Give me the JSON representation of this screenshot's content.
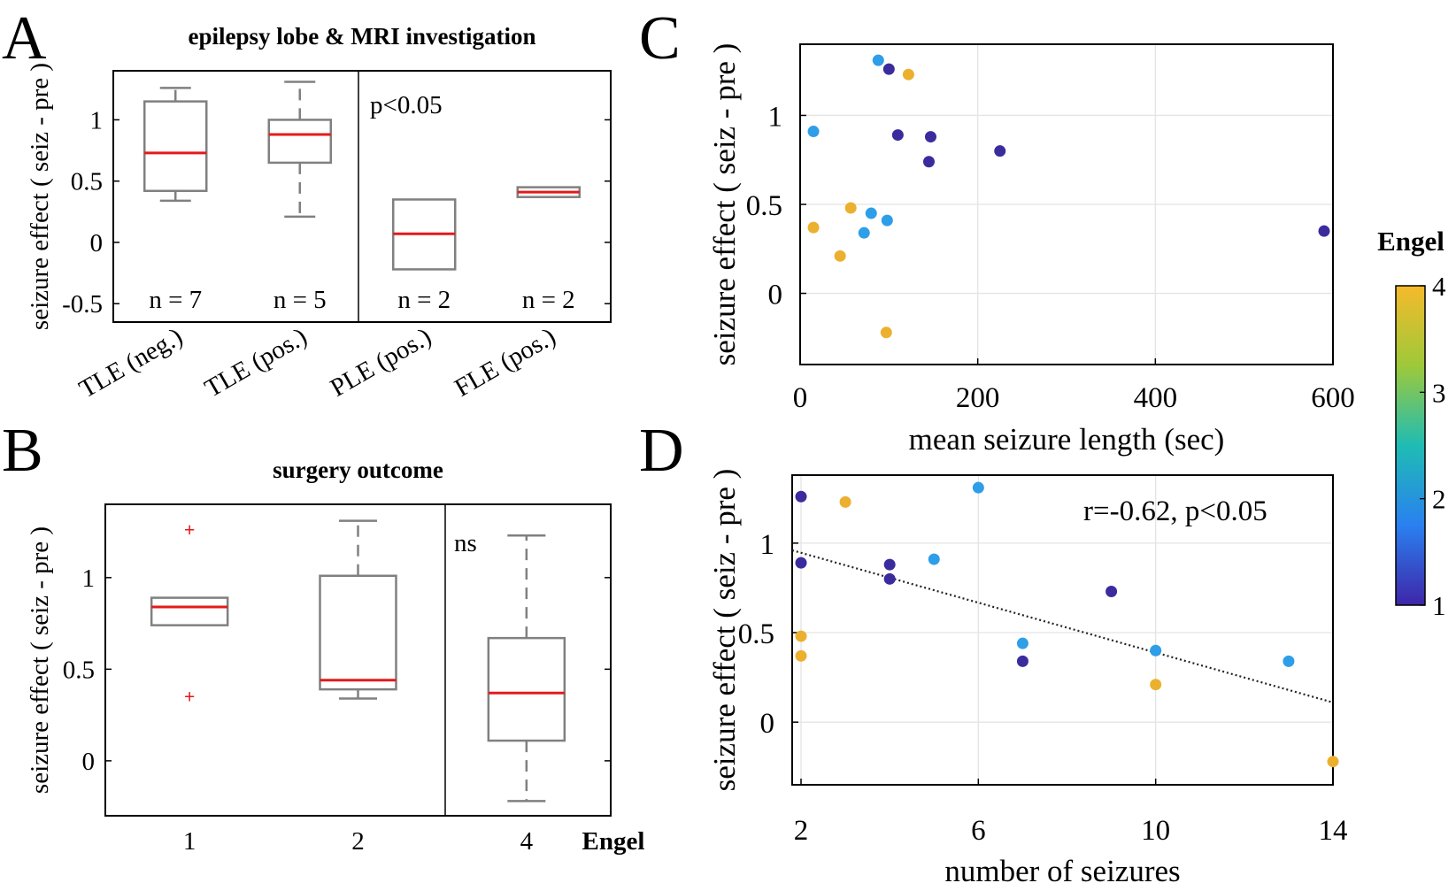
{
  "panel_letters": {
    "a": "A",
    "b": "B",
    "c": "C",
    "d": "D"
  },
  "colors": {
    "engel1": "#3b2c9e",
    "engel2": "#2f9ee8",
    "engel4": "#ecb02f",
    "median": "#e31a1c",
    "box": "#808080"
  },
  "colorbar": {
    "title": "Engel",
    "ticks": [
      "1",
      "2",
      "3",
      "4"
    ]
  },
  "chart_data": [
    {
      "id": "A",
      "type": "box",
      "title": "epilepsy lobe & MRI investigation",
      "ylabel": "seizure effect ( seiz - pre )",
      "ylim": [
        -0.65,
        1.4
      ],
      "yticks": [
        -0.5,
        0,
        0.5,
        1
      ],
      "ytick_labels": [
        "-0.5",
        "0",
        "0.5",
        "1"
      ],
      "categories": [
        "TLE (neg.)",
        "TLE (pos.)",
        "PLE (pos.)",
        "FLE (pos.)"
      ],
      "boxes": [
        {
          "whisker_low": 0.34,
          "q1": 0.42,
          "median": 0.73,
          "q3": 1.15,
          "whisker_high": 1.26
        },
        {
          "whisker_low": 0.21,
          "q1": 0.65,
          "median": 0.88,
          "q3": 1.0,
          "whisker_high": 1.31
        },
        {
          "whisker_low": -0.22,
          "q1": -0.22,
          "median": 0.07,
          "q3": 0.35,
          "whisker_high": 0.35
        },
        {
          "whisker_low": 0.37,
          "q1": 0.37,
          "median": 0.41,
          "q3": 0.45,
          "whisker_high": 0.45
        }
      ],
      "counts": [
        "n = 7",
        "n = 5",
        "n = 2",
        "n = 2"
      ],
      "annotation": "p<0.05"
    },
    {
      "id": "B",
      "type": "box",
      "title": "surgery outcome",
      "ylabel": "seizure effect ( seiz - pre )",
      "xlabel": "Engel",
      "ylim": [
        -0.3,
        1.4
      ],
      "yticks": [
        0,
        0.5,
        1
      ],
      "ytick_labels": [
        "0",
        "0.5",
        "1"
      ],
      "categories": [
        "1",
        "2",
        "4"
      ],
      "boxes": [
        {
          "whisker_low": 0.74,
          "q1": 0.74,
          "median": 0.84,
          "q3": 0.89,
          "whisker_high": 0.89,
          "outliers": [
            1.26,
            0.35
          ]
        },
        {
          "whisker_low": 0.34,
          "q1": 0.39,
          "median": 0.44,
          "q3": 1.01,
          "whisker_high": 1.31,
          "outliers": []
        },
        {
          "whisker_low": -0.22,
          "q1": 0.11,
          "median": 0.37,
          "q3": 0.67,
          "whisker_high": 1.23,
          "outliers": []
        }
      ],
      "annotation": "ns"
    },
    {
      "id": "C",
      "type": "scatter",
      "xlabel": "mean seizure length (sec)",
      "ylabel": "seizure effect ( seiz - pre )",
      "xlim": [
        0,
        600
      ],
      "ylim": [
        -0.4,
        1.4
      ],
      "xticks": [
        0,
        200,
        400,
        600
      ],
      "xtick_labels": [
        "0",
        "200",
        "400",
        "600"
      ],
      "yticks": [
        0,
        0.5,
        1
      ],
      "ytick_labels": [
        "0",
        "0.5",
        "1"
      ],
      "points": [
        {
          "x": 88,
          "y": 1.31,
          "engel": 2
        },
        {
          "x": 100,
          "y": 1.26,
          "engel": 1
        },
        {
          "x": 122,
          "y": 1.23,
          "engel": 4
        },
        {
          "x": 15,
          "y": 0.91,
          "engel": 2
        },
        {
          "x": 110,
          "y": 0.89,
          "engel": 1
        },
        {
          "x": 147,
          "y": 0.88,
          "engel": 1
        },
        {
          "x": 225,
          "y": 0.8,
          "engel": 1
        },
        {
          "x": 145,
          "y": 0.74,
          "engel": 1
        },
        {
          "x": 57,
          "y": 0.48,
          "engel": 4
        },
        {
          "x": 80,
          "y": 0.45,
          "engel": 2
        },
        {
          "x": 15,
          "y": 0.37,
          "engel": 4
        },
        {
          "x": 98,
          "y": 0.41,
          "engel": 2
        },
        {
          "x": 72,
          "y": 0.34,
          "engel": 2
        },
        {
          "x": 45,
          "y": 0.21,
          "engel": 4
        },
        {
          "x": 97,
          "y": -0.22,
          "engel": 4
        },
        {
          "x": 590,
          "y": 0.35,
          "engel": 1
        }
      ]
    },
    {
      "id": "D",
      "type": "scatter",
      "xlabel": "number of seizures",
      "ylabel": "seizure effect ( seiz - pre )",
      "xlim": [
        1.8,
        14
      ],
      "ylim": [
        -0.35,
        1.38
      ],
      "xticks": [
        2,
        6,
        10,
        14
      ],
      "xtick_labels": [
        "2",
        "6",
        "10",
        "14"
      ],
      "yticks": [
        0,
        0.5,
        1
      ],
      "ytick_labels": [
        "0",
        "0.5",
        "1"
      ],
      "annotation": "r=-0.62, p<0.05",
      "fit_line": {
        "x": [
          1.8,
          14
        ],
        "y": [
          0.96,
          0.11
        ]
      },
      "points": [
        {
          "x": 2,
          "y": 1.26,
          "engel": 1
        },
        {
          "x": 3,
          "y": 1.23,
          "engel": 4
        },
        {
          "x": 6,
          "y": 1.31,
          "engel": 2
        },
        {
          "x": 2,
          "y": 0.89,
          "engel": 1
        },
        {
          "x": 4,
          "y": 0.88,
          "engel": 1
        },
        {
          "x": 4,
          "y": 0.8,
          "engel": 1
        },
        {
          "x": 5,
          "y": 0.91,
          "engel": 2
        },
        {
          "x": 9,
          "y": 0.73,
          "engel": 1
        },
        {
          "x": 2,
          "y": 0.48,
          "engel": 4
        },
        {
          "x": 2,
          "y": 0.37,
          "engel": 4
        },
        {
          "x": 7,
          "y": 0.44,
          "engel": 2
        },
        {
          "x": 7,
          "y": 0.34,
          "engel": 1
        },
        {
          "x": 10,
          "y": 0.4,
          "engel": 2
        },
        {
          "x": 10,
          "y": 0.21,
          "engel": 4
        },
        {
          "x": 13,
          "y": 0.34,
          "engel": 2
        },
        {
          "x": 14,
          "y": -0.22,
          "engel": 4
        }
      ]
    }
  ]
}
